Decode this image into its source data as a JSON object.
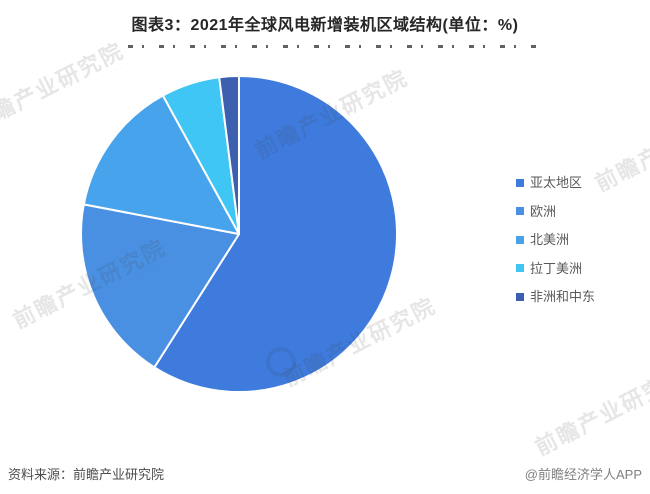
{
  "title": "图表3：2021年全球风电新增装机区域结构(单位：%)",
  "chart_data": {
    "type": "pie",
    "title": "2021年全球风电新增装机区域结构",
    "unit": "%",
    "categories": [
      "亚太地区",
      "欧洲",
      "北美洲",
      "拉丁美洲",
      "非洲和中东"
    ],
    "values": [
      59,
      19,
      14,
      6,
      2
    ],
    "colors": [
      "#3E7BDC",
      "#4A90E2",
      "#47A3EB",
      "#3FC6F4",
      "#3C5FB0"
    ],
    "start_angle_deg": 0,
    "direction": "clockwise",
    "legend_position": "right",
    "slice_border_color": "#FFFFFF"
  },
  "footer": {
    "source": "资料来源：前瞻产业研究院",
    "credit": "@前瞻经济学人APP"
  },
  "watermark": {
    "text": "前瞻产业研究院"
  }
}
